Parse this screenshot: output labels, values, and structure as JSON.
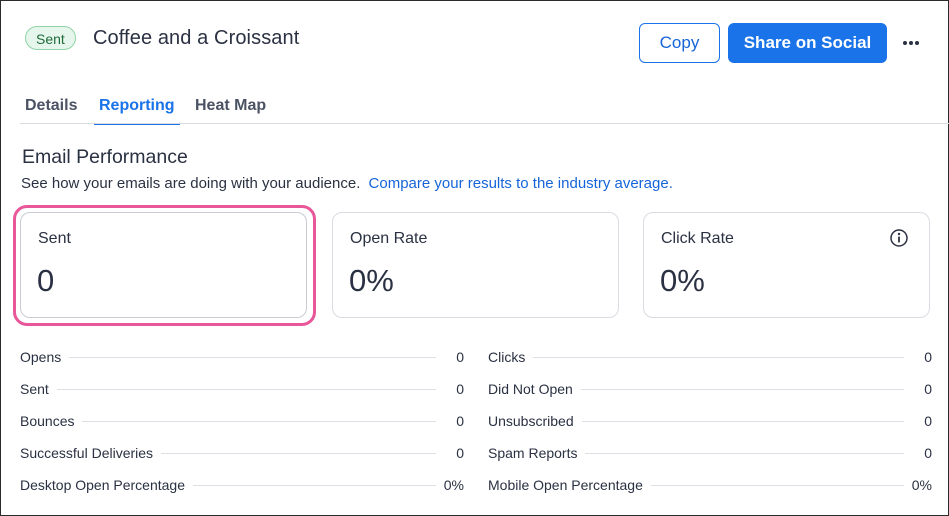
{
  "header": {
    "status_badge": "Sent",
    "title": "Coffee and a Croissant",
    "copy_label": "Copy",
    "share_label": "Share on Social",
    "more_icon": "more-horizontal-icon"
  },
  "tabs": [
    {
      "label": "Details",
      "active": false
    },
    {
      "label": "Reporting",
      "active": true
    },
    {
      "label": "Heat Map",
      "active": false
    }
  ],
  "section": {
    "title": "Email Performance",
    "subtitle": "See how your emails are doing with your audience.",
    "link": "Compare your results to the industry average."
  },
  "cards": [
    {
      "label": "Sent",
      "value": "0",
      "selected": true
    },
    {
      "label": "Open Rate",
      "value": "0%"
    },
    {
      "label": "Click Rate",
      "value": "0%",
      "icon": "info-icon"
    }
  ],
  "stats_left": [
    {
      "label": "Opens",
      "value": "0"
    },
    {
      "label": "Sent",
      "value": "0"
    },
    {
      "label": "Bounces",
      "value": "0"
    },
    {
      "label": "Successful Deliveries",
      "value": "0"
    },
    {
      "label": "Desktop Open Percentage",
      "value": "0%"
    }
  ],
  "stats_right": [
    {
      "label": "Clicks",
      "value": "0"
    },
    {
      "label": "Did Not Open",
      "value": "0"
    },
    {
      "label": "Unsubscribed",
      "value": "0"
    },
    {
      "label": "Spam Reports",
      "value": "0"
    },
    {
      "label": "Mobile Open Percentage",
      "value": "0%"
    }
  ],
  "colors": {
    "primary": "#1a73e8",
    "highlight": "#e8579a",
    "badge_bg": "#e7f6ec",
    "badge_border": "#8fd3a6"
  }
}
